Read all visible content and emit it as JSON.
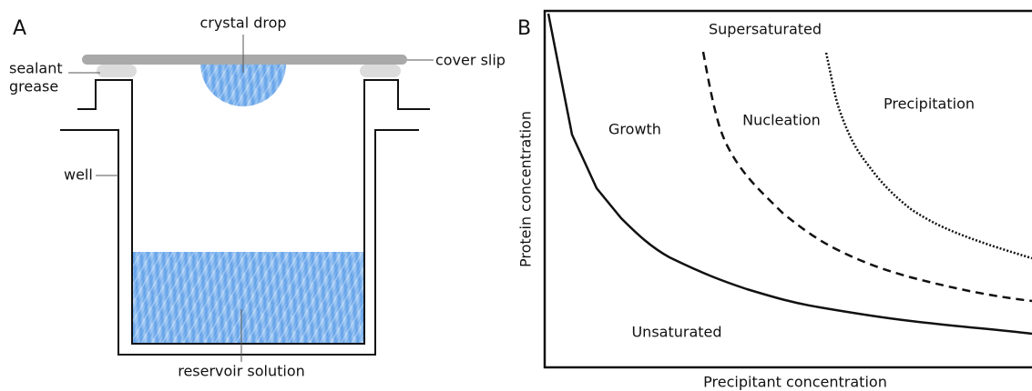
{
  "panel_a": {
    "label": "A",
    "crystal_drop": "crystal drop",
    "cover_slip": "cover slip",
    "sealant": "sealant",
    "grease": "grease",
    "well": "well",
    "reservoir": "reservoir solution"
  },
  "panel_b": {
    "label": "B",
    "y_axis_label": "Protein concentration",
    "x_axis_label": "Precipitant concentration",
    "regions": {
      "supersaturated": "Supersaturated",
      "growth": "Growth",
      "nucleation": "Nucleation",
      "precipitation": "Precipitation",
      "unsaturated": "Unsaturated"
    }
  }
}
